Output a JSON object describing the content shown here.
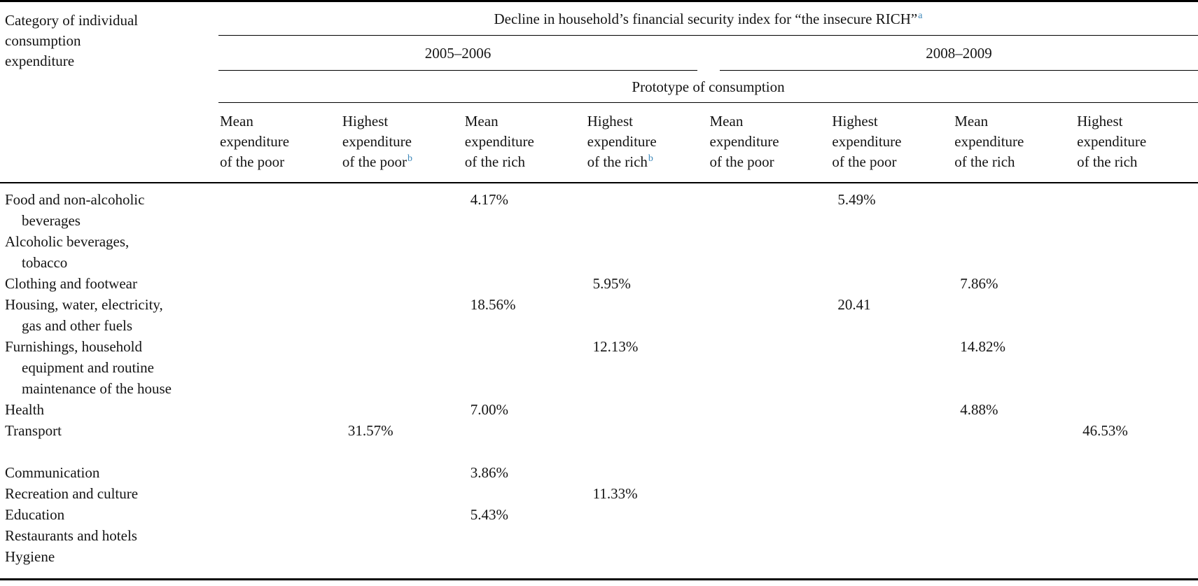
{
  "colors": {
    "text": "#141414",
    "rule": "#000000",
    "footnote_link": "#3c87b9",
    "background": "#ffffff"
  },
  "table": {
    "corner": {
      "lines": [
        "Category of individual",
        "consumption",
        "expenditure"
      ]
    },
    "title": {
      "text": "Decline in household’s financial security index for “the insecure RICH”",
      "footnote_mark": "a"
    },
    "year_groups": [
      {
        "label": "2005–2006"
      },
      {
        "label": "2008–2009"
      }
    ],
    "prototype_header": "Prototype of consumption",
    "columns": [
      {
        "lines": [
          "Mean",
          "expenditure",
          "of the poor"
        ],
        "footnote_mark": ""
      },
      {
        "lines": [
          "Highest",
          "expenditure",
          "of the poor"
        ],
        "footnote_mark": "b"
      },
      {
        "lines": [
          "Mean",
          "expenditure",
          "of the rich"
        ],
        "footnote_mark": ""
      },
      {
        "lines": [
          "Highest",
          "expenditure",
          "of the rich"
        ],
        "footnote_mark": "b"
      },
      {
        "lines": [
          "Mean",
          "expenditure",
          "of the poor"
        ],
        "footnote_mark": ""
      },
      {
        "lines": [
          "Highest",
          "expenditure",
          "of the poor"
        ],
        "footnote_mark": ""
      },
      {
        "lines": [
          "Mean",
          "expenditure",
          "of the rich"
        ],
        "footnote_mark": ""
      },
      {
        "lines": [
          "Highest",
          "expenditure",
          "of the rich"
        ],
        "footnote_mark": ""
      }
    ],
    "rows": [
      {
        "label_lines": [
          "Food and non-alcoholic",
          "beverages"
        ],
        "values": [
          "",
          "",
          "4.17%",
          "",
          "",
          "5.49%",
          "",
          ""
        ]
      },
      {
        "label_lines": [
          "Alcoholic beverages,",
          "tobacco"
        ],
        "values": [
          "",
          "",
          "",
          "",
          "",
          "",
          "",
          ""
        ]
      },
      {
        "label_lines": [
          "Clothing and footwear"
        ],
        "values": [
          "",
          "",
          "",
          "5.95%",
          "",
          "",
          "7.86%",
          ""
        ]
      },
      {
        "label_lines": [
          "Housing, water, electricity,",
          "gas and other fuels"
        ],
        "values": [
          "",
          "",
          "18.56%",
          "",
          "",
          "20.41",
          "",
          ""
        ]
      },
      {
        "label_lines": [
          "Furnishings, household",
          "equipment and routine",
          "maintenance of the house"
        ],
        "values": [
          "",
          "",
          "",
          "12.13%",
          "",
          "",
          "14.82%",
          ""
        ]
      },
      {
        "label_lines": [
          "Health"
        ],
        "values": [
          "",
          "",
          "7.00%",
          "",
          "",
          "",
          "4.88%",
          ""
        ]
      },
      {
        "label_lines": [
          "Transport"
        ],
        "values": [
          "",
          "31.57%",
          "",
          "",
          "",
          "",
          "",
          "46.53%"
        ]
      },
      {
        "label_lines": [
          ""
        ],
        "values": [
          "",
          "",
          "",
          "",
          "",
          "",
          "",
          ""
        ],
        "spacer": true
      },
      {
        "label_lines": [
          "Communication"
        ],
        "values": [
          "",
          "",
          "3.86%",
          "",
          "",
          "",
          "",
          ""
        ]
      },
      {
        "label_lines": [
          "Recreation and culture"
        ],
        "values": [
          "",
          "",
          "",
          "11.33%",
          "",
          "",
          "",
          ""
        ]
      },
      {
        "label_lines": [
          "Education"
        ],
        "values": [
          "",
          "",
          "5.43%",
          "",
          "",
          "",
          "",
          ""
        ]
      },
      {
        "label_lines": [
          "Restaurants and hotels"
        ],
        "values": [
          "",
          "",
          "",
          "",
          "",
          "",
          "",
          ""
        ]
      },
      {
        "label_lines": [
          "Hygiene"
        ],
        "values": [
          "",
          "",
          "",
          "",
          "",
          "",
          "",
          ""
        ]
      }
    ]
  }
}
